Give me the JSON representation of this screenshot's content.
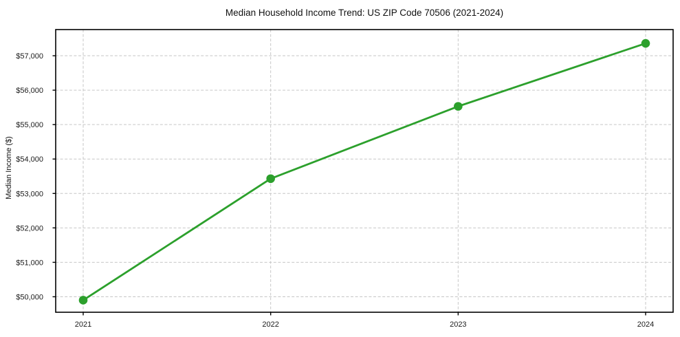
{
  "chart_data": {
    "type": "line",
    "title": "Median Household Income Trend: US ZIP Code 70506 (2021-2024)",
    "xlabel": "",
    "ylabel": "Median Income ($)",
    "x": [
      "2021",
      "2022",
      "2023",
      "2024"
    ],
    "series": [
      {
        "name": "Median Household Income",
        "values": [
          49900,
          53430,
          55530,
          57360
        ],
        "color": "#2ca02c",
        "marker": "circle"
      }
    ],
    "ylim": [
      49550,
      57760
    ],
    "yticks": [
      50000,
      51000,
      52000,
      53000,
      54000,
      55000,
      56000,
      57000
    ],
    "ytick_labels": [
      "$50,000",
      "$51,000",
      "$52,000",
      "$53,000",
      "$54,000",
      "$55,000",
      "$56,000",
      "$57,000"
    ],
    "grid": true,
    "grid_style": "dashed",
    "grid_color": "#c6c6c6",
    "axis_color": "#000000",
    "text_color": "#1a1a1a",
    "background": "#ffffff",
    "legend_position": "none"
  }
}
